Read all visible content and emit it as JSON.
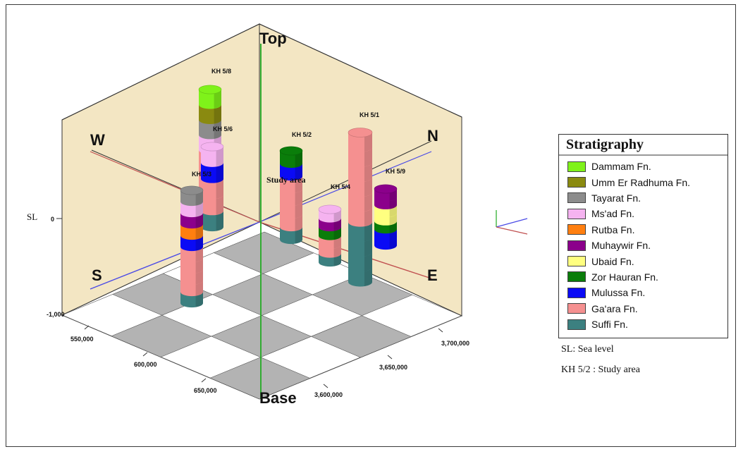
{
  "directions": {
    "top": "Top",
    "base": "Base",
    "west": "W",
    "north": "N",
    "south": "S",
    "east": "E"
  },
  "axis": {
    "sea_level": "SL",
    "sea_level_tick": "0",
    "depth_tick": "-1,000",
    "x_ticks": [
      "550,000",
      "600,000",
      "650,000"
    ],
    "y_ticks": [
      "3,600,000",
      "3,650,000",
      "3,700,000"
    ]
  },
  "study_area_label": "Study area",
  "wells": [
    {
      "name": "KH 5/8",
      "layers": [
        "teal",
        "teal",
        "salmon",
        "salmon",
        "salmon",
        "pink",
        "gray",
        "olive",
        "lime"
      ]
    },
    {
      "name": "KH 5/6",
      "layers": [
        "teal",
        "salmon",
        "salmon",
        "blue",
        "pink"
      ]
    },
    {
      "name": "KH 5/3",
      "layers": [
        "teal",
        "salmon",
        "salmon",
        "salmon",
        "salmon",
        "blue",
        "orange",
        "purple",
        "pink",
        "gray"
      ]
    },
    {
      "name": "KH 5/2",
      "layers": [
        "teal",
        "salmon",
        "salmon",
        "salmon",
        "salmon",
        "blue",
        "green"
      ]
    },
    {
      "name": "KH 5/4",
      "layers": [
        "teal",
        "salmon",
        "salmon",
        "green",
        "purple",
        "pink"
      ]
    },
    {
      "name": "KH 5/1",
      "layers": [
        "teal",
        "teal",
        "teal",
        "teal",
        "salmon",
        "salmon",
        "salmon",
        "salmon",
        "salmon",
        "salmon"
      ]
    },
    {
      "name": "KH 5/9",
      "layers": [
        "blue",
        "blue",
        "green",
        "yellow",
        "yellow",
        "purple",
        "purple"
      ]
    }
  ],
  "legend": {
    "title": "Stratigraphy",
    "items": [
      {
        "label": "Dammam Fn.",
        "color": "#7ff21a"
      },
      {
        "label": "Umm Er Radhuma Fn.",
        "color": "#8a8a10"
      },
      {
        "label": "Tayarat Fn.",
        "color": "#8c8c8c"
      },
      {
        "label": "Ms'ad Fn.",
        "color": "#f5b3f0"
      },
      {
        "label": "Rutba Fn.",
        "color": "#ff7f10"
      },
      {
        "label": "Muhaywir Fn.",
        "color": "#8b008b"
      },
      {
        "label": "Ubaid Fn.",
        "color": "#ffff80"
      },
      {
        "label": "Zor Hauran Fn.",
        "color": "#0a7d0a"
      },
      {
        "label": "Mulussa Fn.",
        "color": "#0a0af5"
      },
      {
        "label": "Ga'ara Fn.",
        "color": "#f59090"
      },
      {
        "label": "Suffi Fn.",
        "color": "#3c8080"
      }
    ]
  },
  "notes": {
    "sea_level_note": "SL: Sea level",
    "study_area_note": "KH 5/2 : Study area"
  },
  "colors": {
    "backwall": "#f3e6c3",
    "grid_gray": "#b3b3b3",
    "frame_line": "#333333",
    "green_axis": "#22aa22",
    "blue_line": "#4a4ae6",
    "red_line": "#c05050"
  }
}
